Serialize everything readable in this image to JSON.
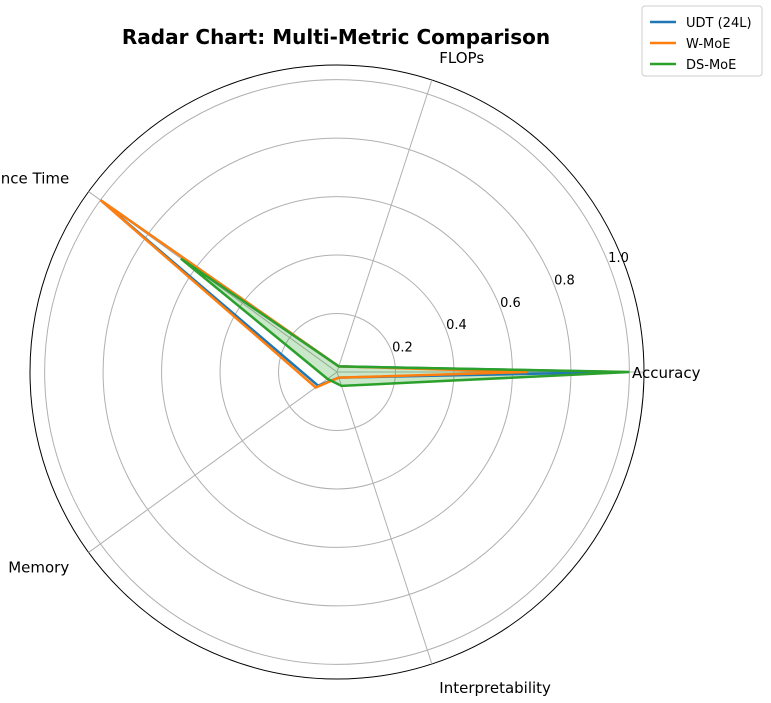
{
  "chart_data": {
    "type": "radar",
    "title": "Radar Chart: Multi-Metric Comparison",
    "axes": [
      "Accuracy",
      "FLOPs",
      "Inference Time",
      "Memory",
      "Interpretability"
    ],
    "rticks": [
      "0.2",
      "0.4",
      "0.6",
      "0.8",
      "1.0"
    ],
    "rlim": [
      0,
      1.05
    ],
    "grid": true,
    "legend_position": "top-right",
    "series": [
      {
        "name": "UDT (24L)",
        "color": "#1f77b4",
        "values": [
          0.97,
          0.02,
          1.0,
          0.08,
          0.02
        ],
        "fill": false
      },
      {
        "name": "W-MoE",
        "color": "#ff7f0e",
        "values": [
          0.65,
          0.02,
          1.0,
          0.09,
          0.02
        ],
        "fill": false
      },
      {
        "name": "DS-MoE",
        "color": "#2ca02c",
        "values": [
          1.0,
          0.02,
          0.66,
          0.04,
          0.05
        ],
        "fill": true
      }
    ]
  }
}
